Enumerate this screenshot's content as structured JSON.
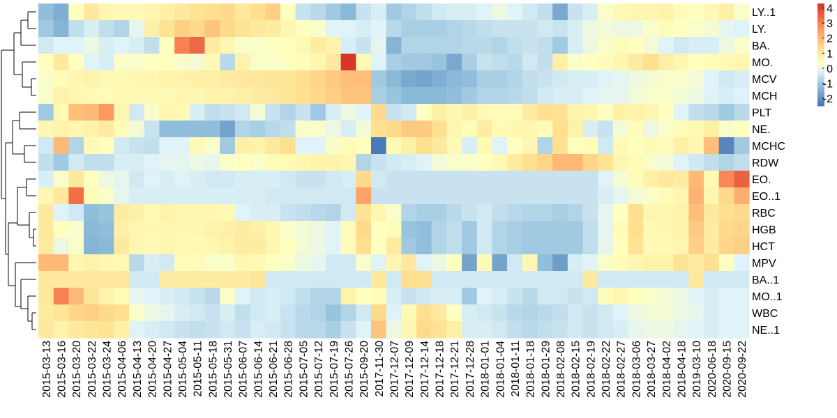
{
  "chart_data": {
    "type": "heatmap",
    "title": "",
    "xlabel": "",
    "ylabel": "",
    "rows": [
      "LY..1",
      "LY.",
      "BA.",
      "MO.",
      "MCV",
      "MCH",
      "PLT",
      "NE.",
      "MCHC",
      "RDW",
      "EO.",
      "EO..1",
      "RBC",
      "HGB",
      "HCT",
      "MPV",
      "BA..1",
      "MO..1",
      "WBC",
      "NE..1"
    ],
    "columns": [
      "2015-03-13",
      "2015-03-16",
      "2015-03-20",
      "2015-03-22",
      "2015-03-24",
      "2015-04-06",
      "2015-04-13",
      "2015-04-20",
      "2015-04-27",
      "2015-05-04",
      "2015-05-11",
      "2015-05-18",
      "2015-05-31",
      "2015-06-07",
      "2015-06-14",
      "2015-06-21",
      "2015-06-28",
      "2015-07-05",
      "2015-07-12",
      "2015-07-19",
      "2015-07-26",
      "2015-09-20",
      "2017-11-30",
      "2017-12-07",
      "2017-12-09",
      "2017-12-14",
      "2017-12-18",
      "2017-12-21",
      "2017-12-28",
      "2018-01-01",
      "2018-01-04",
      "2018-01-11",
      "2018-01-18",
      "2018-01-29",
      "2018-02-08",
      "2018-02-15",
      "2018-02-19",
      "2018-02-22",
      "2018-02-27",
      "2018-03-06",
      "2018-03-27",
      "2018-04-02",
      "2018-04-18",
      "2019-03-10",
      "2020-06-18",
      "2020-09-15",
      "2020-09-22"
    ],
    "column_labels_shown": [
      "2015-03-13",
      "2015-03-16",
      "2015-03-20",
      "2015-03-22",
      "2015-03-24",
      "2015-04-06",
      "2015-04-13",
      "2015-04-20",
      "2015-04-27",
      "2015-05-04",
      "2015-05-11",
      "2015-05-18",
      "2015-05-31",
      "2015-06-07",
      "2015-06-14",
      "2015-06-21",
      "2015-06-28",
      "2015-07-05",
      "2015-07-12",
      "2015-07-19",
      "2015-07-26",
      "2015-09-20",
      "2017-11-30",
      "2017-12-07",
      "2017-12-09",
      "2017-12-14",
      "2017-12-18",
      "2017-12-21",
      "2017-12-28",
      "2018-01-01",
      "2018-01-04",
      "2018-01-11",
      "2018-01-18",
      "2018-01-29",
      "2018-02-08",
      "2018-02-15",
      "2018-02-19",
      "2018-02-22",
      "2018-02-27",
      "2018-03-06",
      "2018-03-27",
      "2018-04-02",
      "2018-04-18",
      "2019-03-10",
      "2020-06-18",
      "2020-09-15",
      "2020-09-22"
    ],
    "values": [
      [
        -1.2,
        -1.5,
        0.3,
        1.0,
        0.6,
        0.5,
        0.5,
        0.6,
        0.8,
        1.0,
        1.2,
        1.3,
        1.4,
        1.0,
        1.3,
        1.6,
        0.3,
        -0.5,
        -0.7,
        -1.0,
        -1.3,
        -0.5,
        -0.3,
        -1.0,
        -0.8,
        -0.6,
        -0.4,
        -0.3,
        -0.3,
        -0.2,
        0.0,
        -0.2,
        -0.4,
        -0.6,
        -1.6,
        -0.5,
        -0.3,
        0.2,
        0.5,
        0.6,
        0.6,
        0.7,
        0.4,
        0.3,
        0.5,
        0.8,
        0.2
      ],
      [
        -1.0,
        -1.4,
        -0.6,
        -0.3,
        -0.6,
        -0.8,
        -0.1,
        0.8,
        1.2,
        1.6,
        1.4,
        1.8,
        1.4,
        1.2,
        1.0,
        0.9,
        0.6,
        0.3,
        0.2,
        -0.2,
        -0.2,
        -0.3,
        -0.2,
        -0.7,
        -0.9,
        -0.9,
        -0.9,
        -0.8,
        -0.7,
        -0.6,
        -0.5,
        -0.5,
        -0.5,
        -0.4,
        -0.5,
        -0.3,
        0.0,
        0.1,
        0.0,
        0.0,
        0.2,
        0.4,
        0.3,
        0.2,
        0.1,
        -0.1,
        -0.2
      ],
      [
        -0.4,
        -0.2,
        -0.2,
        0.0,
        -0.3,
        -0.2,
        -0.3,
        -0.6,
        0.3,
        3.0,
        3.4,
        0.9,
        0.6,
        0.2,
        0.2,
        0.3,
        0.3,
        0.5,
        0.9,
        0.7,
        -0.3,
        -0.5,
        -0.1,
        -1.4,
        -0.8,
        -0.8,
        -0.8,
        -0.8,
        -0.7,
        -0.7,
        -0.8,
        -0.6,
        -0.5,
        -0.6,
        -1.0,
        -0.3,
        0.0,
        0.2,
        0.4,
        0.3,
        0.1,
        -0.2,
        -0.4,
        -0.3,
        -0.3,
        0.0,
        0.2
      ],
      [
        0.3,
        1.0,
        0.3,
        -0.2,
        -0.3,
        0.2,
        0.2,
        0.3,
        0.3,
        0.2,
        0.1,
        0.5,
        -0.7,
        0.7,
        0.2,
        0.2,
        0.3,
        0.4,
        0.6,
        1.0,
        4.2,
        0.5,
        -0.2,
        -0.9,
        -1.0,
        -1.0,
        -1.1,
        -1.6,
        -0.9,
        -0.5,
        -0.6,
        -0.7,
        -0.4,
        -0.6,
        0.8,
        0.2,
        0.3,
        0.4,
        0.6,
        0.9,
        1.3,
        0.8,
        0.6,
        0.3,
        0.4,
        0.5,
        0.6
      ],
      [
        0.2,
        0.4,
        0.6,
        0.7,
        0.5,
        0.5,
        0.6,
        0.6,
        0.7,
        0.7,
        0.8,
        0.8,
        0.9,
        1.0,
        1.0,
        1.1,
        1.1,
        1.3,
        1.5,
        1.7,
        1.9,
        1.9,
        -1.0,
        -1.3,
        -1.6,
        -1.7,
        -1.5,
        -1.3,
        -1.2,
        -0.9,
        -0.9,
        -0.8,
        -0.6,
        -0.5,
        -0.4,
        -0.3,
        -0.3,
        -0.2,
        -0.1,
        0.0,
        0.1,
        0.2,
        0.2,
        0.1,
        -0.2,
        -0.4,
        -0.3
      ],
      [
        0.2,
        0.7,
        0.6,
        0.5,
        0.4,
        0.5,
        0.5,
        0.5,
        0.5,
        0.6,
        0.6,
        0.7,
        0.7,
        0.8,
        0.9,
        1.0,
        1.1,
        1.3,
        1.4,
        1.6,
        1.8,
        1.8,
        -0.9,
        -1.1,
        -1.3,
        -1.3,
        -1.3,
        -1.2,
        -1.0,
        -0.8,
        -0.8,
        -0.7,
        -0.6,
        -0.4,
        -0.3,
        -0.3,
        -0.2,
        -0.1,
        -0.1,
        0.1,
        0.2,
        0.2,
        0.1,
        0.0,
        -0.2,
        -0.3,
        -0.2
      ],
      [
        -1.0,
        0.5,
        1.9,
        2.0,
        2.6,
        0.6,
        -0.4,
        0.2,
        0.6,
        0.5,
        -0.3,
        -0.6,
        -0.5,
        -0.4,
        0.1,
        -0.5,
        -0.8,
        -0.5,
        -1.0,
        -0.3,
        0.0,
        -0.2,
        1.4,
        -0.5,
        -0.4,
        0.3,
        0.8,
        0.6,
        0.8,
        0.5,
        0.4,
        0.4,
        0.9,
        1.3,
        1.2,
        0.7,
        0.6,
        0.3,
        0.8,
        0.7,
        0.6,
        0.3,
        -0.2,
        -0.6,
        -0.7,
        -1.0,
        -0.7
      ],
      [
        0.6,
        0.7,
        0.6,
        0.7,
        0.9,
        0.4,
        0.1,
        -0.5,
        -1.2,
        -1.2,
        -1.2,
        -1.2,
        -1.7,
        -0.8,
        -0.9,
        -0.7,
        -0.6,
        0.2,
        0.2,
        0.0,
        -0.3,
        0.1,
        1.3,
        1.4,
        1.7,
        1.7,
        1.3,
        0.6,
        0.4,
        0.9,
        0.5,
        0.6,
        0.6,
        0.4,
        1.3,
        0.7,
        -0.3,
        -0.5,
        0.1,
        0.4,
        0.0,
        0.2,
        0.4,
        0.5,
        0.8,
        0.2,
        0.3
      ],
      [
        -0.4,
        2.0,
        -0.8,
        0.5,
        0.3,
        -0.4,
        -0.5,
        -0.6,
        -0.2,
        -0.2,
        0.5,
        0.2,
        -1.0,
        0.8,
        0.7,
        1.0,
        1.3,
        -0.2,
        -0.2,
        0.2,
        0.4,
        0.3,
        -2.4,
        0.5,
        0.8,
        1.3,
        1.0,
        0.5,
        -0.3,
        0.5,
        -0.2,
        0.3,
        0.6,
        -0.8,
        1.3,
        0.3,
        0.4,
        -0.4,
        0.5,
        0.3,
        0.5,
        0.4,
        0.8,
        0.6,
        1.9,
        -2.2,
        -1.0
      ],
      [
        -0.6,
        -1.0,
        -0.4,
        -0.6,
        -0.6,
        -0.3,
        -0.3,
        -0.2,
        -0.1,
        -0.1,
        0.0,
        -0.1,
        0.2,
        0.3,
        0.2,
        0.4,
        0.5,
        0.6,
        0.7,
        0.7,
        0.6,
        -0.8,
        -0.5,
        -0.4,
        -0.3,
        -0.2,
        0.1,
        0.2,
        0.2,
        0.3,
        0.5,
        0.9,
        1.3,
        1.5,
        2.0,
        2.0,
        1.5,
        1.2,
        0.6,
        0.4,
        0.2,
        0.1,
        -0.2,
        -0.4,
        -0.6,
        -0.8,
        -0.6
      ],
      [
        -0.3,
        0.2,
        1.0,
        0.3,
        0.0,
        -0.1,
        -0.4,
        -0.2,
        -0.3,
        -0.2,
        -0.3,
        -0.4,
        -0.4,
        -0.3,
        -0.3,
        -0.3,
        -0.4,
        -0.5,
        -0.5,
        -0.4,
        -0.3,
        1.4,
        -0.4,
        -0.5,
        -0.5,
        -0.5,
        -0.5,
        -0.5,
        -0.5,
        -0.5,
        -0.5,
        -0.5,
        -0.5,
        -0.5,
        -0.5,
        -0.5,
        -0.5,
        -0.2,
        0.1,
        0.4,
        0.8,
        1.0,
        0.9,
        2.0,
        0.5,
        2.9,
        3.5
      ],
      [
        0.6,
        1.0,
        3.3,
        0.4,
        0.2,
        -0.1,
        -0.3,
        -0.3,
        -0.3,
        -0.3,
        -0.3,
        -0.3,
        -0.3,
        -0.3,
        -0.3,
        -0.4,
        -0.4,
        -0.4,
        -0.4,
        -0.4,
        -0.4,
        2.4,
        -0.5,
        -0.5,
        -0.5,
        -0.5,
        -0.5,
        -0.5,
        -0.5,
        -0.5,
        -0.5,
        -0.5,
        -0.5,
        -0.5,
        -0.5,
        -0.5,
        -0.5,
        -0.3,
        -0.1,
        0.1,
        0.2,
        0.4,
        0.6,
        2.1,
        0.6,
        1.4,
        2.2
      ],
      [
        1.0,
        -0.2,
        -0.4,
        -1.2,
        -1.1,
        0.9,
        0.8,
        0.5,
        0.7,
        0.6,
        0.6,
        0.6,
        0.5,
        -0.2,
        -0.3,
        -0.3,
        -0.5,
        -0.6,
        -0.7,
        -0.8,
        -0.4,
        1.2,
        0.6,
        0.2,
        -0.8,
        -0.9,
        -0.9,
        -0.7,
        -0.5,
        -0.4,
        -0.6,
        -0.7,
        -0.8,
        -0.8,
        -0.9,
        -0.8,
        -0.5,
        -0.1,
        0.3,
        1.3,
        0.6,
        0.6,
        0.7,
        1.9,
        1.0,
        1.3,
        1.4
      ],
      [
        1.0,
        0.3,
        0.2,
        -1.3,
        -1.2,
        0.8,
        0.6,
        0.6,
        0.6,
        0.6,
        0.6,
        0.7,
        0.8,
        0.9,
        0.8,
        0.6,
        0.2,
        0.1,
        0.0,
        -0.2,
        0.4,
        1.4,
        0.3,
        0.4,
        -1.1,
        -1.2,
        -0.8,
        -0.6,
        -1.0,
        -0.4,
        -0.8,
        -0.9,
        -1.0,
        -1.0,
        -1.0,
        -1.0,
        -0.6,
        -0.1,
        0.4,
        1.3,
        0.5,
        0.6,
        0.7,
        1.7,
        0.9,
        1.4,
        1.5
      ],
      [
        0.9,
        0.0,
        0.2,
        -1.4,
        -1.3,
        1.0,
        0.6,
        0.5,
        0.6,
        0.5,
        0.5,
        0.6,
        0.7,
        0.9,
        0.9,
        0.6,
        0.3,
        0.1,
        0.0,
        -0.2,
        0.4,
        1.3,
        0.3,
        0.9,
        -1.0,
        -1.2,
        -0.8,
        -0.6,
        -1.0,
        -0.4,
        -0.8,
        -0.9,
        -1.0,
        -1.0,
        -1.0,
        -1.0,
        -0.6,
        -0.1,
        0.3,
        1.2,
        0.5,
        0.5,
        0.6,
        1.6,
        0.9,
        1.5,
        1.6
      ],
      [
        2.0,
        2.0,
        0.6,
        0.7,
        0.6,
        0.5,
        -0.7,
        -0.3,
        -0.4,
        0.4,
        0.4,
        0.2,
        0.2,
        0.6,
        0.5,
        0.3,
        0.2,
        0.0,
        -0.1,
        -0.4,
        -0.4,
        0.2,
        -0.2,
        0.6,
        1.0,
        -0.2,
        0.0,
        0.3,
        -1.7,
        0.5,
        -1.7,
        -0.4,
        0.6,
        -1.2,
        -1.8,
        -0.3,
        -0.2,
        0.2,
        0.4,
        0.6,
        0.7,
        0.7,
        1.2,
        0.9,
        1.3,
        0.3,
        -0.2
      ],
      [
        1.0,
        1.0,
        1.0,
        1.0,
        1.0,
        1.0,
        -0.4,
        -0.4,
        0.9,
        0.9,
        0.9,
        0.9,
        0.9,
        0.9,
        1.1,
        -0.4,
        -0.4,
        -0.4,
        -0.4,
        -0.4,
        -0.4,
        -0.4,
        1.0,
        -0.4,
        1.3,
        1.3,
        -0.4,
        -0.4,
        -0.4,
        -0.4,
        -0.4,
        -0.4,
        -0.4,
        -0.4,
        -0.4,
        -0.4,
        1.0,
        -0.4,
        -0.4,
        -0.4,
        -0.4,
        -0.4,
        -0.4,
        1.0,
        -0.4,
        -0.4,
        -0.4
      ],
      [
        1.0,
        3.0,
        2.0,
        1.1,
        0.7,
        0.4,
        -0.1,
        -0.2,
        -0.3,
        -0.4,
        -0.5,
        -0.7,
        0.2,
        -0.2,
        -0.4,
        -0.3,
        -0.4,
        -0.6,
        -0.8,
        -0.8,
        0.7,
        0.3,
        0.4,
        -0.3,
        -0.5,
        -0.4,
        -0.3,
        -0.3,
        -1.0,
        -0.2,
        -0.3,
        -0.5,
        -0.7,
        -0.4,
        -0.4,
        -0.5,
        -0.4,
        0.4,
        0.6,
        0.3,
        0.2,
        0.1,
        0.0,
        -0.2,
        -0.3,
        -0.2,
        -0.2
      ],
      [
        0.9,
        1.1,
        1.5,
        1.6,
        1.4,
        1.3,
        0.2,
        0.0,
        -0.1,
        -0.3,
        -0.4,
        -0.5,
        -0.3,
        -0.6,
        -0.4,
        -0.3,
        -0.5,
        -0.7,
        -0.8,
        -1.1,
        -0.8,
        -0.4,
        1.4,
        -0.2,
        0.5,
        1.3,
        1.0,
        0.3,
        -0.3,
        -0.4,
        -0.5,
        -0.7,
        -0.8,
        -0.7,
        -0.6,
        -0.4,
        -0.5,
        -0.4,
        -0.2,
        0.0,
        0.1,
        0.1,
        0.0,
        -0.1,
        -0.3,
        -0.2,
        -0.2
      ],
      [
        1.0,
        0.7,
        1.0,
        1.1,
        1.2,
        0.8,
        -0.2,
        -0.3,
        -0.4,
        -0.5,
        -0.6,
        -0.5,
        -0.4,
        -0.5,
        -0.3,
        -0.4,
        -0.5,
        -0.7,
        -0.7,
        -0.9,
        -0.5,
        -0.2,
        1.8,
        0.0,
        0.6,
        1.4,
        1.2,
        0.8,
        -0.3,
        -0.3,
        -0.4,
        -0.6,
        -0.7,
        -0.6,
        -0.5,
        -0.4,
        -0.5,
        -0.4,
        -0.3,
        -0.1,
        0.0,
        0.0,
        -0.1,
        -0.2,
        -0.3,
        -0.2,
        -0.2
      ]
    ],
    "legend": {
      "ticks": [
        4,
        3,
        2,
        1,
        0,
        -1,
        -2
      ],
      "range": [
        -2.5,
        4.3
      ],
      "placement": "right"
    },
    "row_dendrogram": true,
    "colors": {
      "low": "#4575b4",
      "mid_low": "#91bfdb",
      "neutral_low": "#e0f3f8",
      "neutral_high": "#ffffbf",
      "mid_high": "#fee090",
      "high_mid": "#fc8d59",
      "high": "#d73027"
    }
  }
}
